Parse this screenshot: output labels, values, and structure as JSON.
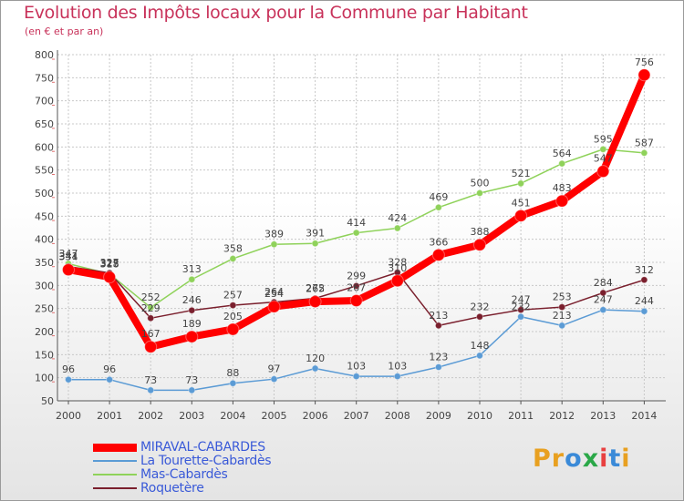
{
  "title": "Evolution des Impôts locaux pour la Commune par Habitant",
  "subtitle": "(en € et par an)",
  "logo": {
    "text": "Proxiti",
    "letters": [
      "P",
      "r",
      "o",
      "x",
      "i",
      "t",
      "i"
    ],
    "colors": [
      "#e8a020",
      "#e8a020",
      "#3a8ad8",
      "#2aa848",
      "#e84040",
      "#3a8ad8",
      "#e8a020"
    ]
  },
  "chart_data": {
    "type": "line",
    "x": [
      "2000",
      "2001",
      "2002",
      "2003",
      "2004",
      "2005",
      "2006",
      "2007",
      "2008",
      "2009",
      "2010",
      "2011",
      "2012",
      "2013",
      "2014"
    ],
    "ylim": [
      50,
      800
    ],
    "yticks": [
      50,
      100,
      150,
      200,
      250,
      300,
      350,
      400,
      450,
      500,
      550,
      600,
      650,
      700,
      750,
      800
    ],
    "series": [
      {
        "name": "Mas-Cabardès",
        "color": "#8fd25a",
        "width": 1.5,
        "r": 3.5,
        "values": [
          347,
          325,
          252,
          313,
          358,
          389,
          391,
          414,
          424,
          469,
          500,
          521,
          564,
          595,
          587
        ]
      },
      {
        "name": "Roquetère",
        "color": "#7a1f2d",
        "width": 1.5,
        "r": 3.5,
        "values": [
          341,
          327,
          229,
          246,
          257,
          264,
          272,
          299,
          328,
          213,
          232,
          247,
          253,
          284,
          312
        ]
      },
      {
        "name": "La Tourette-Cabardès",
        "color": "#5b9bd5",
        "width": 1.5,
        "r": 3.5,
        "values": [
          96,
          96,
          73,
          73,
          88,
          97,
          120,
          103,
          103,
          123,
          148,
          232,
          213,
          247,
          244
        ]
      },
      {
        "name": "MIRAVAL-CABARDES",
        "color": "#ff0000",
        "width": 8,
        "r": 6.5,
        "values": [
          334,
          318,
          167,
          189,
          205,
          254,
          265,
          267,
          310,
          366,
          388,
          451,
          483,
          547,
          756
        ]
      }
    ],
    "legend": [
      {
        "name": "MIRAVAL-CABARDES",
        "color": "#ff0000",
        "text_color": "#3a5ad8"
      },
      {
        "name": "La Tourette-Cabardès",
        "color": "#5b9bd5",
        "text_color": "#3a5ad8"
      },
      {
        "name": "Mas-Cabardès",
        "color": "#8fd25a",
        "text_color": "#3a5ad8"
      },
      {
        "name": "Roquetère",
        "color": "#7a1f2d",
        "text_color": "#3a5ad8"
      }
    ]
  }
}
